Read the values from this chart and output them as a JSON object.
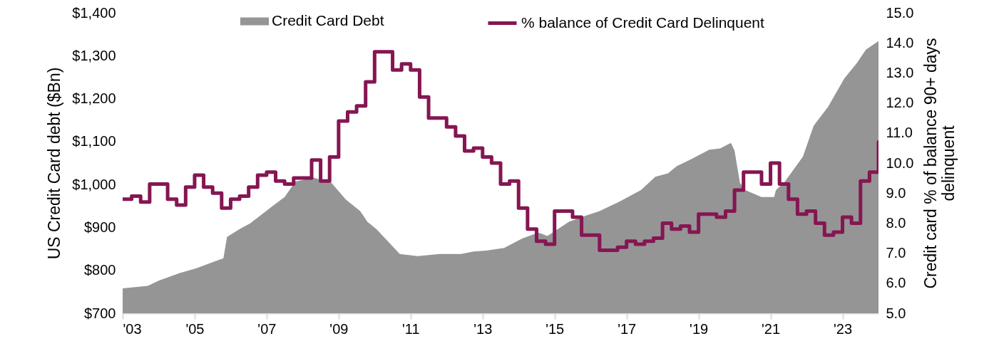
{
  "chart_data": {
    "type": "area",
    "ylabel": "US Credit Card debt ($Bn)",
    "y2label": "Credit card % of balance 90+ days delinquent",
    "legend": "top",
    "xlim": [
      2003,
      2024
    ],
    "xticks": [
      {
        "value": 2003,
        "label": "'03"
      },
      {
        "value": 2005,
        "label": "'05"
      },
      {
        "value": 2007,
        "label": "'07"
      },
      {
        "value": 2009,
        "label": "'09"
      },
      {
        "value": 2011,
        "label": "'11"
      },
      {
        "value": 2013,
        "label": "'13"
      },
      {
        "value": 2015,
        "label": "'15"
      },
      {
        "value": 2017,
        "label": "'17"
      },
      {
        "value": 2019,
        "label": "'19"
      },
      {
        "value": 2021,
        "label": "'21"
      },
      {
        "value": 2023,
        "label": "'23"
      }
    ],
    "ylim": [
      700,
      1400
    ],
    "yticks": [
      {
        "value": 700,
        "label": "$700"
      },
      {
        "value": 800,
        "label": "$800"
      },
      {
        "value": 900,
        "label": "$900"
      },
      {
        "value": 1000,
        "label": "$1,000"
      },
      {
        "value": 1100,
        "label": "$1,100"
      },
      {
        "value": 1200,
        "label": "$1,200"
      },
      {
        "value": 1300,
        "label": "$1,300"
      },
      {
        "value": 1400,
        "label": "$1,400"
      }
    ],
    "y2lim": [
      5,
      15
    ],
    "y2ticks": [
      {
        "value": 5,
        "label": "5.0"
      },
      {
        "value": 6,
        "label": "6.0"
      },
      {
        "value": 7,
        "label": "7.0"
      },
      {
        "value": 8,
        "label": "8.0"
      },
      {
        "value": 9,
        "label": "9.0"
      },
      {
        "value": 10,
        "label": "10.0"
      },
      {
        "value": 11,
        "label": "11.0"
      },
      {
        "value": 12,
        "label": "12.0"
      },
      {
        "value": 13,
        "label": "13.0"
      },
      {
        "value": 14,
        "label": "14.0"
      },
      {
        "value": 15,
        "label": "15.0"
      }
    ],
    "series": [
      {
        "name": "Credit Card Debt",
        "type": "area",
        "color": "#959595",
        "x": [
          2003.0,
          2003.7,
          2004.0,
          2004.6,
          2005.05,
          2005.5,
          2005.8,
          2005.9,
          2006.25,
          2006.55,
          2007.15,
          2007.5,
          2007.8,
          2008.3,
          2008.8,
          2009.2,
          2009.6,
          2009.8,
          2010.05,
          2010.7,
          2011.2,
          2011.8,
          2012.4,
          2012.75,
          2013.1,
          2013.6,
          2014.1,
          2014.55,
          2014.8,
          2015.4,
          2015.85,
          2016.25,
          2016.8,
          2017.4,
          2017.8,
          2018.15,
          2018.4,
          2018.8,
          2019.3,
          2019.6,
          2019.9,
          2020.0,
          2020.15,
          2020.3,
          2020.75,
          2021.1,
          2021.15,
          2021.4,
          2021.9,
          2022.2,
          2022.6,
          2023.05,
          2023.4,
          2023.65,
          2024.0
        ],
        "values": [
          758,
          764,
          776,
          794,
          805,
          819,
          828,
          878,
          896,
          910,
          949,
          971,
          1007,
          1016,
          1004,
          965,
          938,
          913,
          896,
          838,
          833,
          838,
          838,
          844,
          846,
          852,
          874,
          888,
          880,
          913,
          927,
          938,
          960,
          987,
          1018,
          1026,
          1043,
          1059,
          1081,
          1084,
          1097,
          1079,
          1004,
          987,
          971,
          971,
          987,
          1007,
          1065,
          1137,
          1181,
          1247,
          1283,
          1314,
          1334
        ]
      },
      {
        "name": "% balance of Credit Card Delinquent",
        "type": "step",
        "axis": "y2",
        "color": "#851652",
        "x": [
          2003,
          2003.25,
          2003.5,
          2003.75,
          2004,
          2004.25,
          2004.5,
          2004.75,
          2005,
          2005.25,
          2005.5,
          2005.75,
          2006,
          2006.25,
          2006.5,
          2006.75,
          2007,
          2007.25,
          2007.5,
          2007.75,
          2008,
          2008.25,
          2008.5,
          2008.75,
          2009,
          2009.25,
          2009.5,
          2009.75,
          2010,
          2010.25,
          2010.5,
          2010.75,
          2011,
          2011.25,
          2011.5,
          2011.75,
          2012,
          2012.25,
          2012.5,
          2012.75,
          2013,
          2013.25,
          2013.5,
          2013.75,
          2014,
          2014.25,
          2014.5,
          2014.75,
          2015,
          2015.25,
          2015.5,
          2015.75,
          2016,
          2016.25,
          2016.5,
          2016.75,
          2017,
          2017.25,
          2017.5,
          2017.75,
          2018,
          2018.25,
          2018.5,
          2018.75,
          2019,
          2019.25,
          2019.5,
          2019.75,
          2020,
          2020.25,
          2020.5,
          2020.75,
          2021,
          2021.25,
          2021.5,
          2021.75,
          2022,
          2022.25,
          2022.5,
          2022.75,
          2023,
          2023.25,
          2023.5,
          2023.75,
          2024
        ],
        "values": [
          8.8,
          8.9,
          8.7,
          9.3,
          9.3,
          8.8,
          8.6,
          9.2,
          9.6,
          9.2,
          9.0,
          8.5,
          8.8,
          8.9,
          9.2,
          9.6,
          9.7,
          9.4,
          9.3,
          9.5,
          9.5,
          10.1,
          9.4,
          10.2,
          11.4,
          11.7,
          11.9,
          12.7,
          13.7,
          13.7,
          13.1,
          13.3,
          13.1,
          12.2,
          11.5,
          11.5,
          11.2,
          10.9,
          10.4,
          10.5,
          10.2,
          10.0,
          9.3,
          9.4,
          8.5,
          7.8,
          7.4,
          7.3,
          8.4,
          8.4,
          8.2,
          7.6,
          7.6,
          7.1,
          7.1,
          7.2,
          7.4,
          7.3,
          7.4,
          7.5,
          8.0,
          7.8,
          7.9,
          7.7,
          8.3,
          8.3,
          8.2,
          8.4,
          9.1,
          9.7,
          9.7,
          9.3,
          10.0,
          9.3,
          8.8,
          8.3,
          8.4,
          8.0,
          7.6,
          7.7,
          8.2,
          8.0,
          9.4,
          9.7,
          10.7
        ]
      }
    ]
  }
}
